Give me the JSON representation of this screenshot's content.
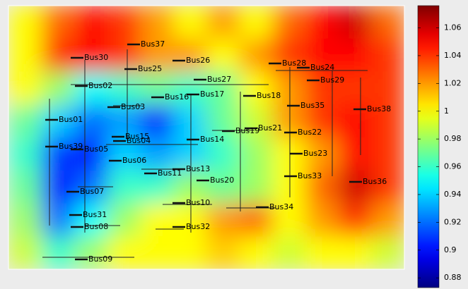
{
  "chart_data": {
    "type": "heatmap",
    "colormap": "jet",
    "zlim": [
      0.873,
      1.076
    ],
    "zticks": [
      0.88,
      0.9,
      0.92,
      0.94,
      0.96,
      0.98,
      1,
      1.02,
      1.04,
      1.06
    ],
    "z": [
      [
        1.0,
        1.03,
        1.05,
        1.04,
        1.02,
        1.0,
        1.02,
        1.0,
        1.03,
        1.05,
        1.06,
        1.03
      ],
      [
        1.0,
        1.04,
        1.05,
        1.04,
        1.02,
        1.02,
        1.0,
        1.02,
        1.04,
        1.05,
        1.05,
        1.04
      ],
      [
        1.0,
        0.98,
        0.95,
        0.96,
        0.97,
        0.96,
        0.97,
        1.0,
        1.02,
        1.04,
        1.04,
        1.04
      ],
      [
        0.97,
        0.94,
        0.92,
        0.93,
        0.9,
        0.94,
        0.97,
        0.99,
        1.02,
        1.04,
        1.05,
        1.04
      ],
      [
        0.96,
        0.91,
        0.9,
        0.94,
        0.93,
        0.94,
        0.96,
        0.98,
        1.0,
        1.02,
        1.05,
        1.04
      ],
      [
        0.97,
        0.9,
        0.92,
        0.96,
        0.96,
        0.98,
        0.97,
        0.98,
        1.0,
        1.03,
        1.06,
        1.04
      ],
      [
        0.98,
        0.92,
        0.95,
        0.98,
        1.0,
        1.0,
        1.02,
        1.03,
        1.0,
        1.02,
        1.04,
        1.02
      ],
      [
        0.99,
        0.96,
        0.98,
        1.0,
        1.0,
        1.0,
        1.01,
        1.0,
        0.99,
        1.0,
        1.0,
        0.99
      ]
    ],
    "annotations": [
      "Bus37",
      "Bus26",
      "Bus28",
      "Bus24",
      "Bus30",
      "Bus25",
      "Bus27",
      "Bus29",
      "Bus02",
      "Bus17",
      "Bus16",
      "Bus18",
      "Bus35",
      "Bus38",
      "Bus03",
      "Bus01",
      "Bus21",
      "Bus22",
      "Bus14",
      "Bus15",
      "Bus19",
      "Bus04",
      "Bus05",
      "Bus39",
      "Bus06",
      "Bus13",
      "Bus11",
      "Bus23",
      "Bus20",
      "Bus33",
      "Bus36",
      "Bus07",
      "Bus10",
      "Bus34",
      "Bus31",
      "Bus08",
      "Bus32",
      "Bus09"
    ]
  }
}
